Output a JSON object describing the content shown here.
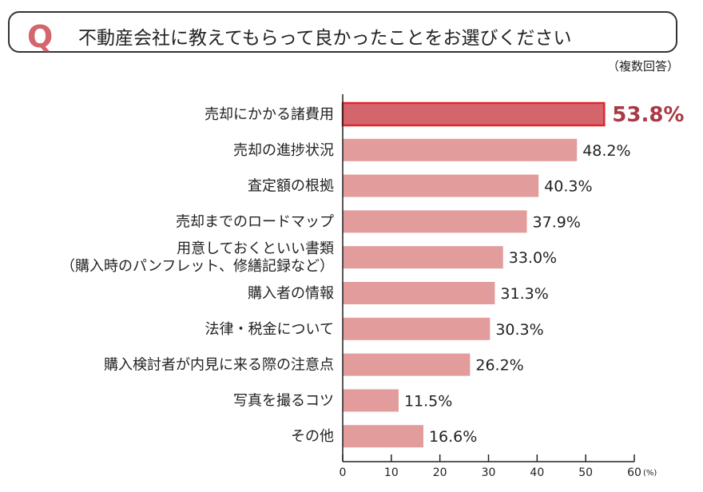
{
  "question": {
    "mark": "Q",
    "text": "不動産会社に教えてもらって良かったことをお選びください",
    "note": "（複数回答）"
  },
  "chart_data": {
    "type": "bar",
    "orientation": "horizontal",
    "categories": [
      "売却にかかる諸費用",
      "売却の進捗状況",
      "査定額の根拠",
      "売却までのロードマップ",
      "用意しておくといい書類\n（購入時のパンフレット、修繕記録など）",
      "購入者の情報",
      "法律・税金について",
      "購入検討者が内見に来る際の注意点",
      "写真を撮るコツ",
      "その他"
    ],
    "values": [
      53.8,
      48.2,
      40.3,
      37.9,
      33.0,
      31.3,
      30.3,
      26.2,
      11.5,
      16.6
    ],
    "value_labels": [
      "53.8%",
      "48.2%",
      "40.3%",
      "37.9%",
      "33.0%",
      "31.3%",
      "30.3%",
      "26.2%",
      "11.5%",
      "16.6%"
    ],
    "xlim": [
      0,
      60
    ],
    "xticks": [
      0,
      10,
      20,
      30,
      40,
      50,
      60
    ],
    "xunit": "(%)",
    "highlight_index": 0,
    "colors": {
      "bar": "#e29c9c",
      "highlight": "#d4656c",
      "highlight_border": "#e0262f",
      "highlight_label": "#a83a45",
      "text": "#222222"
    }
  }
}
